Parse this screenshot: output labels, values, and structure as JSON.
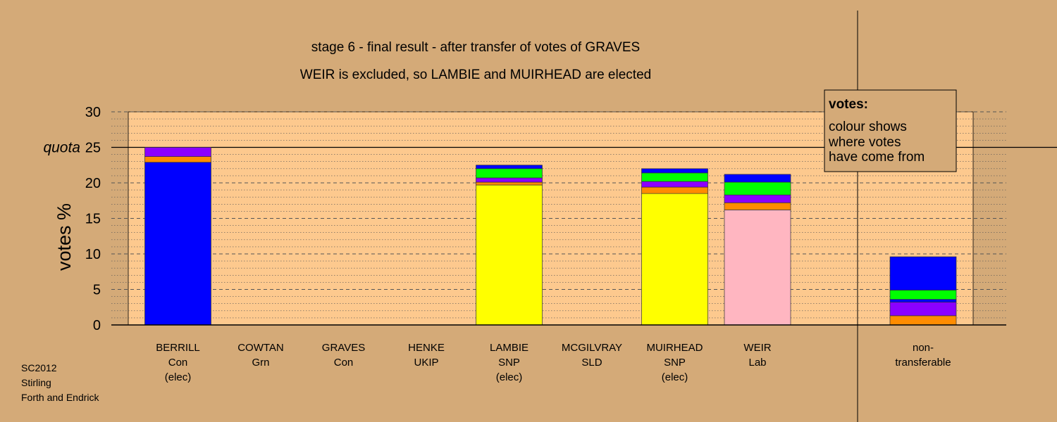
{
  "colors": {
    "background": "#d4aa78",
    "plot_bg": "#fdc98e",
    "Con": "#0000ff",
    "SNP": "#ffff00",
    "Lab": "#ffb6c1",
    "orange": "#ff8c00",
    "purple": "#8b00ff",
    "green": "#00ff00"
  },
  "source_lines": [
    "SC2012",
    "Stirling",
    "Forth and Endrick"
  ],
  "legend": {
    "title": "votes:",
    "lines": [
      "colour shows",
      "where votes",
      "have come from"
    ]
  },
  "chart_data": {
    "type": "bar",
    "stacked": true,
    "title_lines": [
      "stage 6 - final result - after transfer of votes of GRAVES",
      "WEIR is excluded, so LAMBIE and MUIRHEAD are elected"
    ],
    "ylabel": "votes %",
    "ylim": [
      0,
      30
    ],
    "yticks": [
      "0",
      "5",
      "10",
      "15",
      "20",
      "25",
      "30"
    ],
    "quota": 25,
    "quota_label": "quota",
    "grid": "minor dotted every 1, dashed every 5",
    "categories": [
      {
        "lines": [
          "BERRILL",
          "Con",
          "(elec)"
        ],
        "segments": [
          {
            "source": "Con",
            "color": "#0000ff",
            "value": 22.9
          },
          {
            "source": "orange",
            "color": "#ff8c00",
            "value": 0.8
          },
          {
            "source": "purple",
            "color": "#8b00ff",
            "value": 1.3
          }
        ]
      },
      {
        "lines": [
          "COWTAN",
          "Grn"
        ],
        "segments": []
      },
      {
        "lines": [
          "GRAVES",
          "Con"
        ],
        "segments": []
      },
      {
        "lines": [
          "HENKE",
          "UKIP"
        ],
        "segments": []
      },
      {
        "lines": [
          "LAMBIE",
          "SNP",
          "(elec)"
        ],
        "segments": [
          {
            "source": "SNP",
            "color": "#ffff00",
            "value": 19.7
          },
          {
            "source": "orange",
            "color": "#ff8c00",
            "value": 0.4
          },
          {
            "source": "purple",
            "color": "#8b00ff",
            "value": 0.6
          },
          {
            "source": "green",
            "color": "#00ff00",
            "value": 1.3
          },
          {
            "source": "Con",
            "color": "#0000ff",
            "value": 0.5
          }
        ]
      },
      {
        "lines": [
          "MCGILVRAY",
          "SLD"
        ],
        "segments": []
      },
      {
        "lines": [
          "MUIRHEAD",
          "SNP",
          "(elec)"
        ],
        "segments": [
          {
            "source": "SNP",
            "color": "#ffff00",
            "value": 18.5
          },
          {
            "source": "orange",
            "color": "#ff8c00",
            "value": 0.9
          },
          {
            "source": "purple",
            "color": "#8b00ff",
            "value": 0.8
          },
          {
            "source": "green",
            "color": "#00ff00",
            "value": 1.2
          },
          {
            "source": "Con",
            "color": "#0000ff",
            "value": 0.6
          }
        ]
      },
      {
        "lines": [
          "WEIR",
          "Lab"
        ],
        "segments": [
          {
            "source": "Lab",
            "color": "#ffb6c1",
            "value": 16.2
          },
          {
            "source": "orange",
            "color": "#ff8c00",
            "value": 1.0
          },
          {
            "source": "purple",
            "color": "#8b00ff",
            "value": 1.1
          },
          {
            "source": "green",
            "color": "#00ff00",
            "value": 1.8
          },
          {
            "source": "Con",
            "color": "#0000ff",
            "value": 1.1
          }
        ]
      },
      {
        "lines": [
          "non-",
          "transferable"
        ],
        "separated": true,
        "segments": [
          {
            "source": "orange",
            "color": "#ff8c00",
            "value": 1.3
          },
          {
            "source": "purple",
            "color": "#8b00ff",
            "value": 1.9
          },
          {
            "source": "Con",
            "color": "#0000ff",
            "value": 0.4
          },
          {
            "source": "green",
            "color": "#00ff00",
            "value": 1.3
          },
          {
            "source": "Con",
            "color": "#0000ff",
            "value": 4.7
          }
        ]
      }
    ]
  }
}
